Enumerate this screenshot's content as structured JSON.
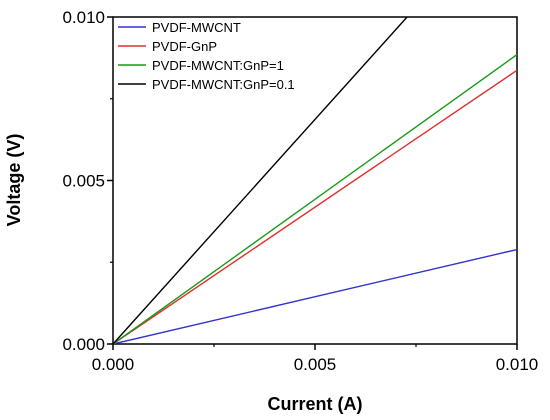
{
  "chart_data": {
    "type": "line",
    "title": "",
    "xlabel": "Current (A)",
    "ylabel": "Voltage (V)",
    "xlim": [
      0,
      0.01
    ],
    "ylim": [
      0,
      0.01
    ],
    "xticks": [
      "0.000",
      "0.005",
      "0.010"
    ],
    "yticks": [
      "0.000",
      "0.005",
      "0.010"
    ],
    "xtick_values": [
      0,
      0.005,
      0.01
    ],
    "ytick_values": [
      0,
      0.005,
      0.01
    ],
    "grid": false,
    "legend_position": "top-left",
    "series": [
      {
        "name": "PVDF-MWCNT",
        "color": "#3333cc",
        "x": [
          0,
          0.01
        ],
        "y": [
          0,
          0.00289
        ]
      },
      {
        "name": "PVDF-GnP",
        "color": "#e03030",
        "x": [
          0,
          0.01
        ],
        "y": [
          0,
          0.00837
        ]
      },
      {
        "name": "PVDF-MWCNT:GnP=1",
        "color": "#1a9a1a",
        "x": [
          0,
          0.01
        ],
        "y": [
          0,
          0.00885
        ]
      },
      {
        "name": "PVDF-MWCNT:GnP=0.1",
        "color": "#000000",
        "x": [
          0,
          0.00728
        ],
        "y": [
          0,
          0.01
        ]
      }
    ]
  }
}
